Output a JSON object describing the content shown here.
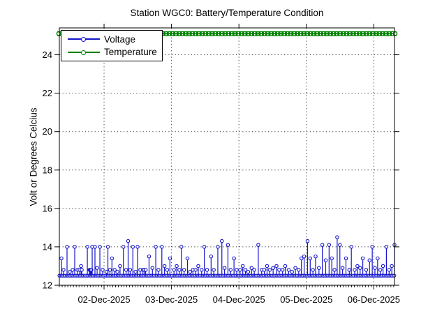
{
  "figure": {
    "title": "Station WGC0: Battery/Temperature Condition",
    "ylabel": "Volt or Degrees Celcius"
  },
  "legend": {
    "items": [
      {
        "label": "Voltage",
        "color": "#1414cc"
      },
      {
        "label": "Temperature",
        "color": "#008000"
      }
    ]
  },
  "chart_data": {
    "type": "line",
    "title": "Station WGC0: Battery/Temperature Condition",
    "xlabel": "",
    "ylabel": "Volt or Degrees Celcius",
    "ylim": [
      12,
      25.4
    ],
    "y_ticks": [
      12,
      14,
      16,
      18,
      20,
      22,
      24
    ],
    "x_total_days": 4.97,
    "x_ticks": [
      {
        "label": "02-Dec-2025",
        "t": 0.663
      },
      {
        "label": "03-Dec-2025",
        "t": 1.663
      },
      {
        "label": "04-Dec-2025",
        "t": 2.663
      },
      {
        "label": "05-Dec-2025",
        "t": 3.663
      },
      {
        "label": "06-Dec-2025",
        "t": 4.663
      }
    ],
    "minor_tick_step_days": 0.041667,
    "grid": "dotted",
    "legend_position": "northwest",
    "series": [
      {
        "name": "Voltage",
        "color": "#1414cc",
        "marker": "o",
        "baseline_value": 12.5,
        "baseline_marker_step_days": 0.018,
        "stems": [
          [
            0.031,
            13.4
          ],
          [
            0.062,
            12.8
          ],
          [
            0.114,
            14.0
          ],
          [
            0.155,
            12.7
          ],
          [
            0.197,
            12.8
          ],
          [
            0.228,
            14.0
          ],
          [
            0.269,
            12.8
          ],
          [
            0.301,
            12.8
          ],
          [
            0.322,
            13.0
          ],
          [
            0.332,
            12.8
          ],
          [
            0.415,
            14.0
          ],
          [
            0.446,
            12.8
          ],
          [
            0.455,
            12.8
          ],
          [
            0.465,
            12.8
          ],
          [
            0.475,
            12.8
          ],
          [
            0.487,
            14.0
          ],
          [
            0.528,
            14.0
          ],
          [
            0.56,
            12.9
          ],
          [
            0.601,
            14.0
          ],
          [
            0.642,
            12.8
          ],
          [
            0.7,
            12.7
          ],
          [
            0.72,
            14.0
          ],
          [
            0.75,
            12.8
          ],
          [
            0.78,
            13.4
          ],
          [
            0.82,
            12.8
          ],
          [
            0.86,
            12.7
          ],
          [
            0.9,
            13.0
          ],
          [
            0.95,
            14.0
          ],
          [
            0.99,
            12.8
          ],
          [
            1.02,
            14.3
          ],
          [
            1.05,
            12.8
          ],
          [
            1.09,
            14.0
          ],
          [
            1.13,
            12.7
          ],
          [
            1.16,
            14.0
          ],
          [
            1.2,
            12.8
          ],
          [
            1.24,
            12.8
          ],
          [
            1.26,
            12.8
          ],
          [
            1.28,
            12.8
          ],
          [
            1.33,
            13.5
          ],
          [
            1.38,
            12.9
          ],
          [
            1.43,
            14.0
          ],
          [
            1.47,
            12.8
          ],
          [
            1.52,
            14.0
          ],
          [
            1.56,
            13.0
          ],
          [
            1.6,
            12.8
          ],
          [
            1.64,
            13.4
          ],
          [
            1.7,
            12.8
          ],
          [
            1.74,
            13.0
          ],
          [
            1.78,
            12.8
          ],
          [
            1.81,
            14.0
          ],
          [
            1.85,
            12.8
          ],
          [
            1.9,
            13.4
          ],
          [
            1.94,
            12.7
          ],
          [
            1.98,
            12.8
          ],
          [
            2.02,
            12.8
          ],
          [
            2.06,
            13.0
          ],
          [
            2.11,
            12.8
          ],
          [
            2.15,
            14.0
          ],
          [
            2.19,
            12.8
          ],
          [
            2.25,
            13.5
          ],
          [
            2.29,
            12.8
          ],
          [
            2.35,
            14.0
          ],
          [
            2.41,
            14.3
          ],
          [
            2.45,
            12.9
          ],
          [
            2.5,
            14.1
          ],
          [
            2.54,
            12.8
          ],
          [
            2.59,
            13.4
          ],
          [
            2.63,
            12.8
          ],
          [
            2.68,
            12.8
          ],
          [
            2.72,
            13.0
          ],
          [
            2.76,
            12.8
          ],
          [
            2.8,
            12.7
          ],
          [
            2.85,
            12.9
          ],
          [
            2.89,
            12.8
          ],
          [
            2.95,
            14.1
          ],
          [
            3.0,
            12.8
          ],
          [
            3.04,
            12.8
          ],
          [
            3.08,
            13.0
          ],
          [
            3.12,
            12.8
          ],
          [
            3.17,
            12.9
          ],
          [
            3.22,
            13.0
          ],
          [
            3.26,
            12.8
          ],
          [
            3.31,
            12.8
          ],
          [
            3.35,
            13.0
          ],
          [
            3.4,
            12.8
          ],
          [
            3.45,
            12.7
          ],
          [
            3.5,
            12.9
          ],
          [
            3.55,
            12.8
          ],
          [
            3.59,
            13.4
          ],
          [
            3.63,
            13.5
          ],
          [
            3.68,
            14.3
          ],
          [
            3.72,
            13.4
          ],
          [
            3.76,
            12.8
          ],
          [
            3.8,
            13.5
          ],
          [
            3.85,
            12.9
          ],
          [
            3.9,
            14.1
          ],
          [
            3.95,
            13.3
          ],
          [
            4.0,
            14.1
          ],
          [
            4.04,
            13.4
          ],
          [
            4.08,
            12.8
          ],
          [
            4.12,
            14.5
          ],
          [
            4.16,
            14.1
          ],
          [
            4.2,
            12.9
          ],
          [
            4.25,
            13.4
          ],
          [
            4.3,
            12.8
          ],
          [
            4.33,
            14.0
          ],
          [
            4.38,
            12.8
          ],
          [
            4.42,
            13.0
          ],
          [
            4.46,
            12.9
          ],
          [
            4.5,
            13.4
          ],
          [
            4.55,
            12.8
          ],
          [
            4.6,
            13.3
          ],
          [
            4.64,
            14.0
          ],
          [
            4.68,
            12.9
          ],
          [
            4.72,
            13.4
          ],
          [
            4.76,
            12.8
          ],
          [
            4.8,
            13.0
          ],
          [
            4.85,
            14.0
          ],
          [
            4.89,
            12.8
          ],
          [
            4.93,
            13.0
          ],
          [
            4.97,
            14.1
          ]
        ]
      },
      {
        "name": "Temperature",
        "color": "#008000",
        "marker": "o",
        "constant_value": 25.1
      }
    ]
  }
}
